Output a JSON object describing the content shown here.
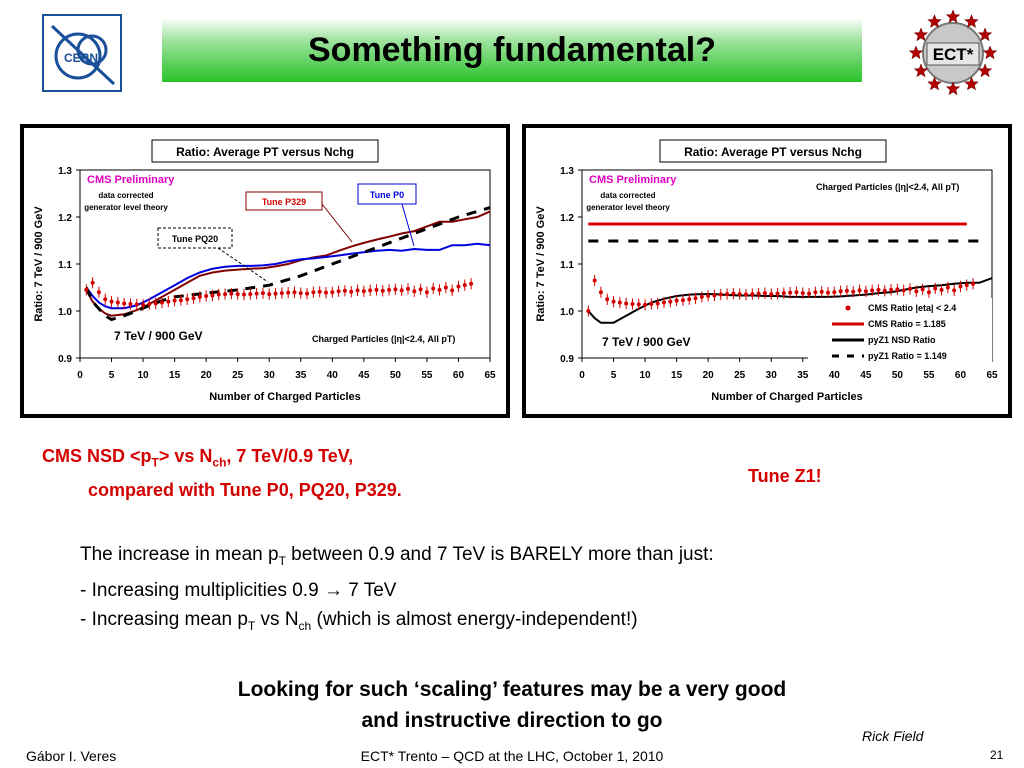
{
  "slide": {
    "title": "Something fundamental?",
    "logo_left": "CERN",
    "logo_right": "ECT*",
    "caption_line1_a": "CMS NSD <p",
    "caption_line1_sub1": "T",
    "caption_line1_b": "> vs N",
    "caption_line1_sub2": "ch",
    "caption_line1_c": ", 7 TeV/0.9 TeV,",
    "caption_line2": "compared with Tune P0, PQ20, P329.",
    "tune_z1": "Tune Z1!",
    "body_line1_a": "The increase in mean p",
    "body_line1_sub": "T",
    "body_line1_b": " between 0.9 and 7 TeV is BARELY more than just:",
    "body_line2_a": "- Increasing multiplicities 0.9 ",
    "body_line2_arrow": "→",
    "body_line2_b": " 7 TeV",
    "body_line3_a": "- Increasing mean p",
    "body_line3_sub1": "T",
    "body_line3_b": " vs N",
    "body_line3_sub2": "ch",
    "body_line3_c": " (which is almost energy-independent!)",
    "bottom_line1": "Looking for such ‘scaling’ features may be a very good",
    "bottom_line2": "and instructive direction to go",
    "author_right": "Rick Field",
    "footer_left": "Gábor I. Veres",
    "footer_center": "ECT* Trento – QCD at the LHC, October 1, 2010",
    "page_number": "21"
  },
  "colors": {
    "title_green": "#29c229",
    "red": "#d40000",
    "dark_red": "#800000",
    "blue": "#0000dd"
  },
  "chart_data": [
    {
      "type": "line",
      "title": "Ratio: Average PT versus Nchg",
      "xlabel": "Number of Charged Particles",
      "ylabel": "Ratio: 7 TeV / 900 GeV",
      "xlim": [
        0,
        65
      ],
      "ylim": [
        0.9,
        1.3
      ],
      "xticks": [
        0,
        5,
        10,
        15,
        20,
        25,
        30,
        35,
        40,
        45,
        50,
        55,
        60,
        65
      ],
      "yticks": [
        0.9,
        1.0,
        1.1,
        1.2,
        1.3
      ],
      "ytick_labels": [
        "0.9",
        "1.0",
        "1.1",
        "1.2",
        "1.3"
      ],
      "label_cms": "CMS Preliminary",
      "label_data1": "data corrected",
      "label_data2": "generator level theory",
      "label_energy": "7 TeV / 900 GeV",
      "label_charged": "Charged Particles (|η|<2.4, All pT)",
      "label_p329": "Tune P329",
      "label_p0": "Tune P0",
      "label_pq20": "Tune PQ20",
      "series": [
        {
          "name": "Tune P329",
          "color": "#800000",
          "style": "solid",
          "x": [
            1,
            2,
            3,
            4,
            5,
            7,
            9,
            11,
            13,
            15,
            17,
            19,
            21,
            23,
            25,
            27,
            29,
            31,
            33,
            35,
            37,
            39,
            41,
            43,
            45,
            47,
            49,
            51,
            53,
            55,
            57,
            59,
            61,
            63,
            65
          ],
          "y": [
            1.045,
            1.02,
            1.005,
            0.995,
            0.99,
            0.993,
            1.002,
            1.015,
            1.03,
            1.045,
            1.06,
            1.075,
            1.082,
            1.086,
            1.088,
            1.09,
            1.091,
            1.095,
            1.1,
            1.108,
            1.114,
            1.118,
            1.128,
            1.137,
            1.145,
            1.152,
            1.158,
            1.165,
            1.17,
            1.18,
            1.19,
            1.19,
            1.195,
            1.2,
            1.212
          ]
        },
        {
          "name": "Tune P0",
          "color": "#0000dd",
          "style": "solid",
          "x": [
            1,
            2,
            3,
            4,
            5,
            7,
            9,
            11,
            13,
            15,
            17,
            19,
            21,
            23,
            25,
            27,
            29,
            31,
            33,
            35,
            37,
            39,
            41,
            43,
            45,
            47,
            49,
            51,
            53,
            55,
            57,
            59,
            61,
            63,
            65
          ],
          "y": [
            1.05,
            1.032,
            1.018,
            1.01,
            1.006,
            1.006,
            1.012,
            1.025,
            1.04,
            1.055,
            1.07,
            1.082,
            1.09,
            1.094,
            1.096,
            1.096,
            1.097,
            1.1,
            1.106,
            1.11,
            1.112,
            1.115,
            1.118,
            1.122,
            1.125,
            1.128,
            1.13,
            1.128,
            1.132,
            1.13,
            1.13,
            1.14,
            1.14,
            1.143,
            1.14
          ]
        },
        {
          "name": "Tune PQ20",
          "color": "#000000",
          "style": "dashed",
          "x": [
            1,
            2,
            3,
            4,
            5,
            7,
            9,
            11,
            13,
            15,
            20,
            25,
            30,
            35,
            40,
            45,
            50,
            55,
            60,
            65
          ],
          "y": [
            1.05,
            1.02,
            1.005,
            0.99,
            0.982,
            0.99,
            1.0,
            1.012,
            1.022,
            1.03,
            1.038,
            1.045,
            1.055,
            1.075,
            1.1,
            1.125,
            1.15,
            1.175,
            1.2,
            1.22
          ]
        },
        {
          "name": "CMS data",
          "color": "#d40000",
          "style": "points",
          "x": [
            1,
            2,
            3,
            4,
            5,
            6,
            7,
            8,
            9,
            10,
            11,
            12,
            13,
            14,
            15,
            16,
            17,
            18,
            19,
            20,
            21,
            22,
            23,
            24,
            25,
            26,
            27,
            28,
            29,
            30,
            31,
            32,
            33,
            34,
            35,
            36,
            37,
            38,
            39,
            40,
            41,
            42,
            43,
            44,
            45,
            46,
            47,
            48,
            49,
            50,
            51,
            52,
            53,
            54,
            55,
            56,
            57,
            58,
            59,
            60,
            61,
            62
          ],
          "y": [
            1.045,
            1.06,
            1.04,
            1.025,
            1.02,
            1.018,
            1.016,
            1.015,
            1.014,
            1.013,
            1.015,
            1.016,
            1.018,
            1.02,
            1.022,
            1.023,
            1.025,
            1.027,
            1.03,
            1.032,
            1.033,
            1.035,
            1.036,
            1.037,
            1.036,
            1.035,
            1.036,
            1.037,
            1.038,
            1.036,
            1.037,
            1.038,
            1.039,
            1.04,
            1.038,
            1.037,
            1.04,
            1.041,
            1.039,
            1.04,
            1.042,
            1.043,
            1.041,
            1.044,
            1.042,
            1.044,
            1.045,
            1.043,
            1.045,
            1.046,
            1.044,
            1.047,
            1.042,
            1.046,
            1.04,
            1.048,
            1.045,
            1.05,
            1.044,
            1.052,
            1.055,
            1.058
          ],
          "err": 0.012
        }
      ]
    },
    {
      "type": "line",
      "title": "Ratio: Average PT versus Nchg",
      "xlabel": "Number of Charged Particles",
      "ylabel": "Ratio: 7 TeV / 900 GeV",
      "xlim": [
        0,
        65
      ],
      "ylim": [
        0.9,
        1.3
      ],
      "xticks": [
        0,
        5,
        10,
        15,
        20,
        25,
        30,
        35,
        40,
        45,
        50,
        55,
        60,
        65
      ],
      "yticks": [
        0.9,
        1.0,
        1.1,
        1.2,
        1.3
      ],
      "ytick_labels": [
        "0.9",
        "1.0",
        "1.1",
        "1.2",
        "1.3"
      ],
      "label_cms": "CMS Preliminary",
      "label_data1": "data corrected",
      "label_data2": "generator level theory",
      "label_energy": "7 TeV / 900 GeV",
      "label_charged": "Charged Particles (|η|<2.4, All pT)",
      "legend": [
        {
          "name": "CMS Ratio |eta| < 2.4",
          "color": "#d40000",
          "style": "points"
        },
        {
          "name": "CMS Ratio = 1.185",
          "color": "#d40000",
          "style": "solid"
        },
        {
          "name": "pyZ1 NSD Ratio",
          "color": "#000000",
          "style": "solid"
        },
        {
          "name": "pyZ1 Ratio = 1.149",
          "color": "#000000",
          "style": "dashed"
        }
      ],
      "legend_position": "bottom-right",
      "series": [
        {
          "name": "CMS Ratio = 1.185",
          "color": "#d40000",
          "style": "hline",
          "value": 1.185
        },
        {
          "name": "pyZ1 Ratio = 1.149",
          "color": "#000000",
          "style": "dashed-hline",
          "value": 1.149
        },
        {
          "name": "pyZ1 NSD Ratio",
          "color": "#000000",
          "style": "solid",
          "x": [
            1,
            2,
            3,
            5,
            7,
            9,
            11,
            13,
            15,
            17,
            19,
            21,
            23,
            25,
            27,
            29,
            31,
            33,
            35,
            37,
            39,
            41,
            43,
            45,
            47,
            49,
            51,
            53,
            55,
            57,
            59,
            61,
            63,
            65
          ],
          "y": [
            1.0,
            0.985,
            0.975,
            0.975,
            0.99,
            1.005,
            1.018,
            1.026,
            1.032,
            1.035,
            1.036,
            1.036,
            1.034,
            1.033,
            1.033,
            1.032,
            1.032,
            1.03,
            1.03,
            1.03,
            1.03,
            1.031,
            1.033,
            1.035,
            1.038,
            1.04,
            1.045,
            1.05,
            1.053,
            1.055,
            1.058,
            1.06,
            1.06,
            1.07
          ]
        },
        {
          "name": "CMS Ratio |eta| < 2.4",
          "color": "#d40000",
          "style": "points",
          "x": [
            1,
            2,
            3,
            4,
            5,
            6,
            7,
            8,
            9,
            10,
            11,
            12,
            13,
            14,
            15,
            16,
            17,
            18,
            19,
            20,
            21,
            22,
            23,
            24,
            25,
            26,
            27,
            28,
            29,
            30,
            31,
            32,
            33,
            34,
            35,
            36,
            37,
            38,
            39,
            40,
            41,
            42,
            43,
            44,
            45,
            46,
            47,
            48,
            49,
            50,
            51,
            52,
            53,
            54,
            55,
            56,
            57,
            58,
            59,
            60,
            61,
            62
          ],
          "y": [
            1.0,
            1.065,
            1.04,
            1.025,
            1.02,
            1.018,
            1.016,
            1.015,
            1.014,
            1.013,
            1.015,
            1.016,
            1.018,
            1.02,
            1.022,
            1.023,
            1.025,
            1.027,
            1.03,
            1.032,
            1.033,
            1.035,
            1.036,
            1.037,
            1.036,
            1.035,
            1.036,
            1.037,
            1.038,
            1.036,
            1.037,
            1.038,
            1.039,
            1.04,
            1.038,
            1.037,
            1.04,
            1.041,
            1.039,
            1.04,
            1.042,
            1.043,
            1.041,
            1.044,
            1.042,
            1.044,
            1.045,
            1.043,
            1.045,
            1.046,
            1.044,
            1.047,
            1.042,
            1.046,
            1.04,
            1.048,
            1.045,
            1.05,
            1.044,
            1.052,
            1.055,
            1.058
          ],
          "err": 0.012
        }
      ]
    }
  ]
}
